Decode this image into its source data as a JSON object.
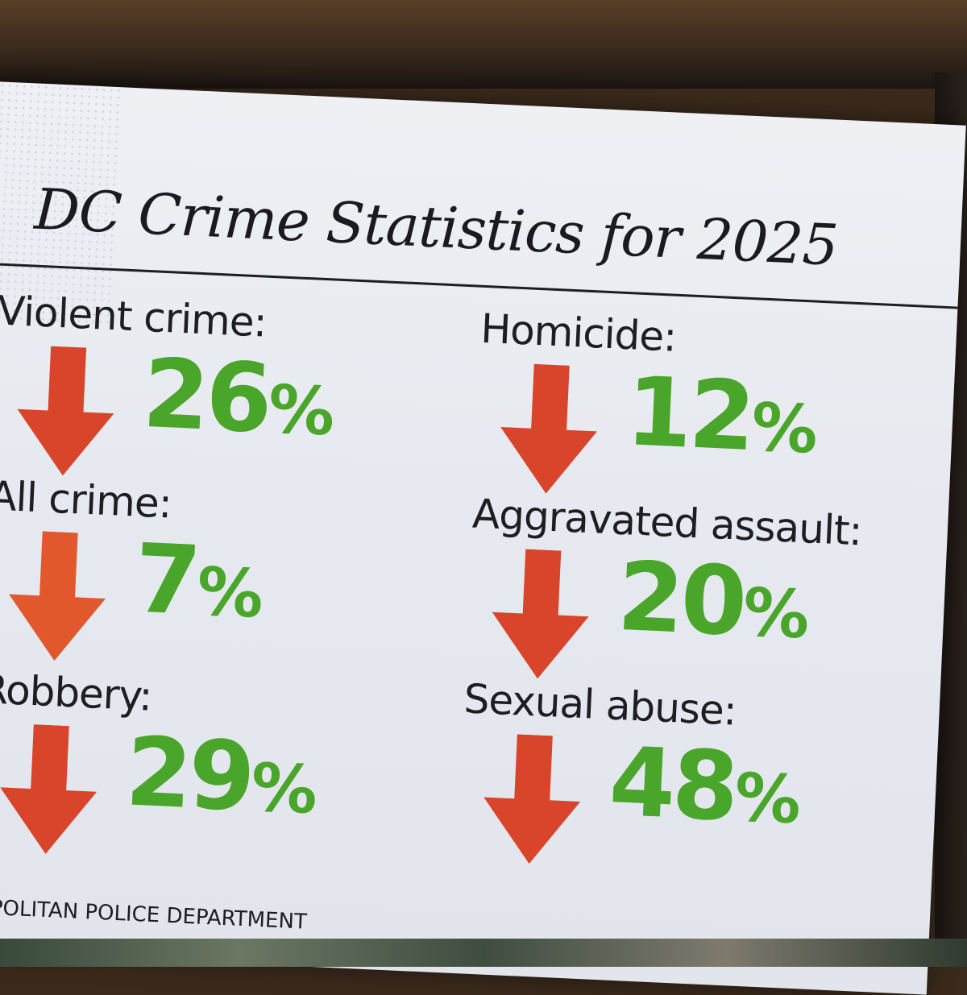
{
  "slide": {
    "title": "DC Crime Statistics for 2025",
    "source": "TROPOLITAN POLICE DEPARTMENT"
  },
  "stats": [
    {
      "label": "Violent crime:",
      "value": "26",
      "unit": "%",
      "direction": "down"
    },
    {
      "label": "All crime:",
      "value": "7",
      "unit": "%",
      "direction": "down"
    },
    {
      "label": "Robbery:",
      "value": "29",
      "unit": "%",
      "direction": "down"
    },
    {
      "label": "Homicide:",
      "value": "12",
      "unit": "%",
      "direction": "down"
    },
    {
      "label": "Aggravated assault:",
      "value": "20",
      "unit": "%",
      "direction": "down"
    },
    {
      "label": "Sexual abuse:",
      "value": "48",
      "unit": "%",
      "direction": "down"
    }
  ],
  "colors": {
    "arrow": "#d8452b",
    "value": "#49a62a",
    "text": "#1d1d22",
    "screen": "#e9ecf1"
  },
  "icons": {
    "arrow": "down-arrow-icon"
  }
}
